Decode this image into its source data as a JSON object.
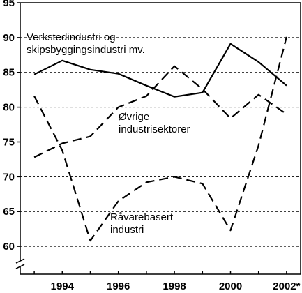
{
  "chart_data": {
    "type": "line",
    "x": [
      1993,
      1994,
      1995,
      1996,
      1997,
      1998,
      1999,
      2000,
      2001,
      2002
    ],
    "x_ticks": [
      1994,
      1996,
      1998,
      2000,
      2002
    ],
    "x_tick_labels": [
      "1994",
      "1996",
      "1998",
      "2000",
      "2002*"
    ],
    "y_ticks": [
      60,
      65,
      70,
      75,
      80,
      85,
      90,
      95
    ],
    "y_tick_labels": [
      "60",
      "65",
      "70",
      "75",
      "80",
      "85",
      "90",
      "95"
    ],
    "ylim": [
      56,
      95
    ],
    "xlim": [
      1992.5,
      2002.5
    ],
    "y_axis_break": true,
    "grid": "horizontal-dashed",
    "title": "",
    "xlabel": "",
    "ylabel": "",
    "series": [
      {
        "name_lines": [
          "Verkstedindustri og",
          "skipsbyggingsindustri mv."
        ],
        "style": "solid",
        "values": [
          84.7,
          86.7,
          85.4,
          84.8,
          83.1,
          81.5,
          82.1,
          89.1,
          86.5,
          83.1
        ]
      },
      {
        "name_lines": [
          "Øvrige",
          "industrisektorer"
        ],
        "style": "dashed",
        "values": [
          72.8,
          74.8,
          75.8,
          80.0,
          81.6,
          85.9,
          82.6,
          78.4,
          81.8,
          79.0
        ]
      },
      {
        "name_lines": [
          "Råvarebasert",
          "industri"
        ],
        "style": "dashed",
        "values": [
          81.6,
          73.8,
          60.8,
          66.5,
          69.2,
          70.0,
          69.0,
          62.3,
          74.5,
          90.1
        ]
      }
    ]
  }
}
